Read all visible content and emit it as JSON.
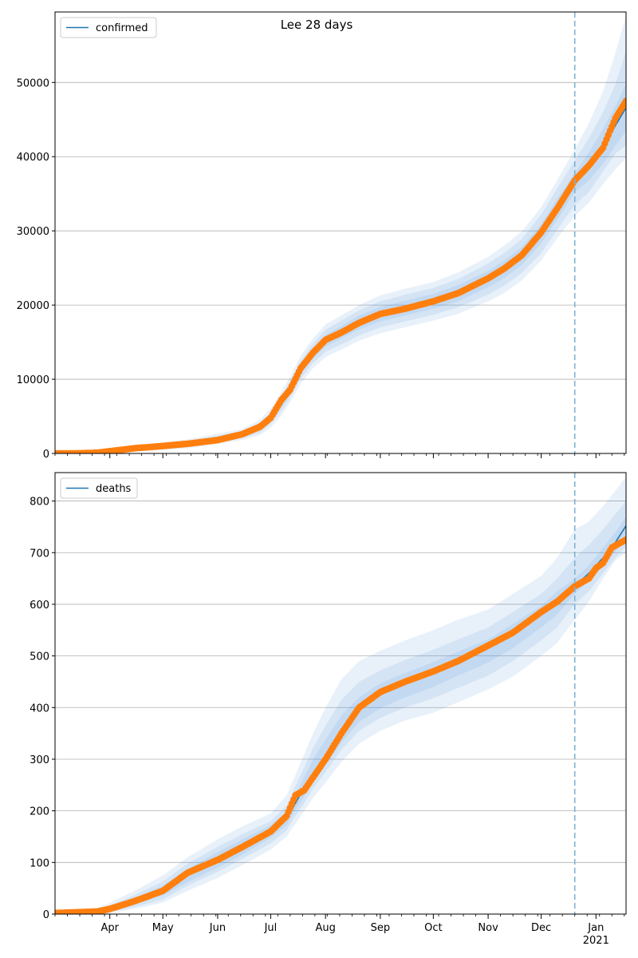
{
  "figure_title": "Lee 28 days",
  "x_axis": {
    "start": "2020-03-01",
    "end": "2021-01-18",
    "tick_labels": [
      {
        "date": "2020-04-01",
        "label": "Apr"
      },
      {
        "date": "2020-05-01",
        "label": "May"
      },
      {
        "date": "2020-06-01",
        "label": "Jun"
      },
      {
        "date": "2020-07-01",
        "label": "Jul"
      },
      {
        "date": "2020-08-01",
        "label": "Aug"
      },
      {
        "date": "2020-09-01",
        "label": "Sep"
      },
      {
        "date": "2020-10-01",
        "label": "Oct"
      },
      {
        "date": "2020-11-01",
        "label": "Nov"
      },
      {
        "date": "2020-12-01",
        "label": "Dec"
      },
      {
        "date": "2021-01-01",
        "label": "Jan"
      }
    ],
    "year_label": "2021"
  },
  "colors": {
    "model_line": "#1f77b4",
    "observed": "#ff7f0e",
    "band": "#4a90d9",
    "grid": "#b0b0b0",
    "divider": "#7fb1d3"
  },
  "chart_data": [
    {
      "type": "line",
      "legend": "confirmed",
      "legend_position": "top-left",
      "grid": "horizontal",
      "forecast_start": "2020-12-20",
      "ylim": [
        0,
        59500
      ],
      "yticks": [
        0,
        10000,
        20000,
        30000,
        40000,
        50000
      ],
      "observed_series": {
        "x": [
          "2020-03-01",
          "2020-03-15",
          "2020-03-25",
          "2020-04-01",
          "2020-04-15",
          "2020-05-01",
          "2020-05-15",
          "2020-06-01",
          "2020-06-15",
          "2020-06-25",
          "2020-07-01",
          "2020-07-07",
          "2020-07-12",
          "2020-07-18",
          "2020-07-25",
          "2020-08-01",
          "2020-08-10",
          "2020-08-20",
          "2020-09-01",
          "2020-09-15",
          "2020-10-01",
          "2020-10-15",
          "2020-11-01",
          "2020-11-10",
          "2020-11-20",
          "2020-12-01",
          "2020-12-10",
          "2020-12-20",
          "2020-12-28",
          "2021-01-05",
          "2021-01-12",
          "2021-01-18"
        ],
        "y": [
          0,
          20,
          100,
          300,
          700,
          1000,
          1300,
          1800,
          2600,
          3600,
          4800,
          7200,
          8600,
          11500,
          13600,
          15300,
          16300,
          17600,
          18800,
          19500,
          20500,
          21600,
          23600,
          24900,
          26700,
          29800,
          33000,
          36800,
          38800,
          41200,
          45200,
          47500
        ]
      },
      "model_series": {
        "x": [
          "2020-03-01",
          "2020-03-25",
          "2020-04-15",
          "2020-05-15",
          "2020-06-15",
          "2020-06-25",
          "2020-07-01",
          "2020-07-07",
          "2020-07-12",
          "2020-07-18",
          "2020-07-25",
          "2020-08-01",
          "2020-08-10",
          "2020-08-20",
          "2020-09-01",
          "2020-09-15",
          "2020-10-01",
          "2020-10-15",
          "2020-11-01",
          "2020-11-10",
          "2020-11-20",
          "2020-12-01",
          "2020-12-10",
          "2020-12-20",
          "2020-12-28",
          "2021-01-05",
          "2021-01-12",
          "2021-01-18"
        ],
        "y": [
          0,
          100,
          650,
          1300,
          2550,
          3550,
          4750,
          6700,
          8600,
          11300,
          13500,
          15200,
          16300,
          17600,
          18750,
          19600,
          20500,
          21600,
          23500,
          24800,
          26600,
          29600,
          32900,
          36500,
          38700,
          41300,
          44200,
          46600
        ]
      },
      "bands": [
        {
          "upper": [
            120,
            350,
            1050,
            1900,
            3300,
            4600,
            6000,
            8300,
            10300,
            13200,
            15500,
            17400,
            18600,
            20000,
            21300,
            22200,
            23100,
            24400,
            26500,
            28000,
            29900,
            33200,
            36800,
            41000,
            44500,
            48800,
            54000,
            59000
          ],
          "lower": [
            0,
            0,
            250,
            700,
            1800,
            2500,
            3500,
            5100,
            6900,
            9400,
            11500,
            13000,
            14000,
            15200,
            16200,
            17000,
            17900,
            18800,
            20500,
            21600,
            23300,
            26000,
            29000,
            32000,
            33800,
            36300,
            38300,
            39800
          ]
        },
        {
          "upper": [
            80,
            250,
            850,
            1650,
            3000,
            4200,
            5500,
            7700,
            9700,
            12500,
            14800,
            16700,
            17900,
            19300,
            20500,
            21400,
            22300,
            23500,
            25600,
            27000,
            28900,
            32200,
            35700,
            39500,
            42500,
            46000,
            49800,
            54200
          ],
          "lower": [
            0,
            0,
            400,
            950,
            2050,
            2850,
            3950,
            5700,
            7500,
            10100,
            12200,
            13700,
            14700,
            15900,
            17000,
            17800,
            18700,
            19700,
            21400,
            22600,
            24300,
            27000,
            30100,
            33500,
            35200,
            38000,
            40400,
            41500
          ]
        },
        {
          "upper": [
            40,
            170,
            720,
            1450,
            2750,
            3850,
            5100,
            7200,
            9200,
            11900,
            14200,
            16000,
            17200,
            18600,
            19750,
            20600,
            21500,
            22700,
            24600,
            26000,
            27800,
            30900,
            34300,
            37800,
            40600,
            43700,
            46900,
            49800
          ],
          "lower": [
            0,
            40,
            530,
            1150,
            2300,
            3250,
            4400,
            6200,
            8000,
            10700,
            12800,
            14400,
            15500,
            16700,
            17800,
            18600,
            19500,
            20500,
            22400,
            23600,
            25400,
            28300,
            31500,
            35200,
            36800,
            39000,
            41500,
            43400
          ]
        }
      ]
    },
    {
      "type": "line",
      "legend": "deaths",
      "legend_position": "top-left",
      "grid": "horizontal",
      "forecast_start": "2020-12-20",
      "ylim": [
        0,
        855
      ],
      "yticks": [
        0,
        100,
        200,
        300,
        400,
        500,
        600,
        700,
        800
      ],
      "observed_series": {
        "x": [
          "2020-03-01",
          "2020-03-25",
          "2020-04-01",
          "2020-04-15",
          "2020-05-01",
          "2020-05-15",
          "2020-06-01",
          "2020-06-15",
          "2020-07-01",
          "2020-07-10",
          "2020-07-15",
          "2020-07-20",
          "2020-07-25",
          "2020-08-01",
          "2020-08-10",
          "2020-08-20",
          "2020-09-01",
          "2020-09-15",
          "2020-10-01",
          "2020-10-15",
          "2020-11-01",
          "2020-11-15",
          "2020-12-01",
          "2020-12-10",
          "2020-12-20",
          "2020-12-28",
          "2021-01-01",
          "2021-01-05",
          "2021-01-10",
          "2021-01-18"
        ],
        "y": [
          2,
          5,
          10,
          25,
          45,
          80,
          105,
          130,
          160,
          190,
          230,
          240,
          265,
          300,
          350,
          400,
          430,
          450,
          470,
          490,
          520,
          545,
          585,
          605,
          635,
          650,
          670,
          680,
          710,
          725
        ]
      },
      "model_series": {
        "x": [
          "2020-03-01",
          "2020-03-25",
          "2020-04-01",
          "2020-04-15",
          "2020-05-01",
          "2020-05-15",
          "2020-06-01",
          "2020-06-15",
          "2020-07-01",
          "2020-07-10",
          "2020-07-15",
          "2020-07-20",
          "2020-07-25",
          "2020-08-01",
          "2020-08-10",
          "2020-08-20",
          "2020-09-01",
          "2020-09-15",
          "2020-10-01",
          "2020-10-15",
          "2020-11-01",
          "2020-11-15",
          "2020-12-01",
          "2020-12-10",
          "2020-12-20",
          "2020-12-28",
          "2021-01-05",
          "2021-01-12",
          "2021-01-18"
        ],
        "y": [
          0,
          5,
          10,
          25,
          45,
          75,
          105,
          130,
          160,
          185,
          215,
          245,
          270,
          305,
          350,
          395,
          430,
          450,
          470,
          490,
          515,
          545,
          580,
          605,
          635,
          660,
          690,
          720,
          752
        ]
      },
      "bands": [
        {
          "upper": [
            3,
            12,
            22,
            45,
            75,
            110,
            145,
            170,
            195,
            230,
            270,
            310,
            350,
            400,
            455,
            490,
            510,
            530,
            550,
            570,
            590,
            620,
            655,
            690,
            745,
            760,
            790,
            820,
            848
          ],
          "lower": [
            0,
            0,
            2,
            10,
            22,
            45,
            70,
            95,
            125,
            150,
            175,
            200,
            225,
            255,
            295,
            330,
            355,
            375,
            390,
            410,
            435,
            460,
            500,
            525,
            570,
            605,
            650,
            685,
            700
          ]
        },
        {
          "upper": [
            2,
            9,
            17,
            37,
            63,
            98,
            130,
            155,
            180,
            210,
            248,
            285,
            322,
            365,
            415,
            450,
            472,
            492,
            512,
            532,
            555,
            585,
            620,
            650,
            690,
            715,
            745,
            775,
            800
          ],
          "lower": [
            0,
            2,
            4,
            14,
            28,
            55,
            82,
            107,
            137,
            162,
            190,
            215,
            243,
            275,
            318,
            355,
            380,
            400,
            418,
            438,
            462,
            490,
            530,
            555,
            600,
            625,
            660,
            690,
            712
          ]
        },
        {
          "upper": [
            1,
            7,
            13,
            30,
            55,
            88,
            120,
            145,
            172,
            198,
            232,
            265,
            300,
            338,
            385,
            420,
            447,
            467,
            488,
            508,
            532,
            562,
            597,
            625,
            650,
            675,
            710,
            740,
            770
          ],
          "lower": [
            0,
            3,
            7,
            19,
            36,
            62,
            90,
            115,
            148,
            172,
            202,
            228,
            255,
            288,
            332,
            372,
            398,
            420,
            440,
            462,
            487,
            515,
            555,
            580,
            620,
            645,
            672,
            702,
            732
          ]
        }
      ]
    }
  ]
}
